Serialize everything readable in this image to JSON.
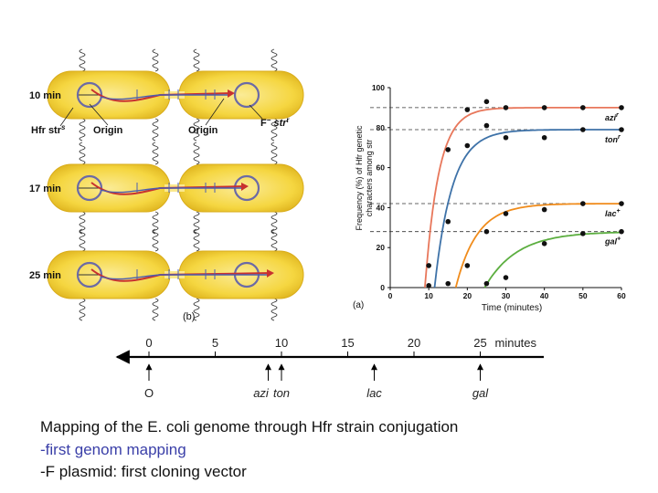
{
  "panel_b": {
    "label": "(b)",
    "time_labels": [
      "10 min",
      "17 min",
      "25 min"
    ],
    "hfr_label": "Hfr str",
    "hfr_sup": "s",
    "origin_left": "Origin",
    "origin_right": "Origin",
    "recipient_label": "F",
    "recipient_minus": "−",
    "recipient_str": " str",
    "recipient_sup": "r"
  },
  "panel_a": {
    "label": "(a)",
    "chart_data": {
      "type": "line",
      "title": "",
      "xlabel": "Time (minutes)",
      "ylabel": "Frequency (%) of Hfr genetic characters among strʳ exconjugants",
      "xlim": [
        0,
        60
      ],
      "ylim": [
        0,
        100
      ],
      "x_ticks": [
        "0",
        "10",
        "20",
        "30",
        "40",
        "50",
        "60"
      ],
      "y_ticks": [
        "0",
        "20",
        "40",
        "60",
        "80",
        "100"
      ],
      "plateau_dashed_lines": [
        90,
        79,
        42,
        28
      ],
      "series": [
        {
          "name": "azi",
          "sup": "r",
          "color": "#e8775b",
          "plateau": 90,
          "points": [
            [
              10,
              11
            ],
            [
              15,
              69
            ],
            [
              20,
              89
            ],
            [
              25,
              93
            ],
            [
              30,
              90
            ],
            [
              40,
              90
            ],
            [
              50,
              90
            ],
            [
              60,
              90
            ]
          ]
        },
        {
          "name": "ton",
          "sup": "r",
          "color": "#3e72a8",
          "plateau": 79,
          "points": [
            [
              10,
              1
            ],
            [
              15,
              33
            ],
            [
              20,
              71
            ],
            [
              25,
              81
            ],
            [
              30,
              75
            ],
            [
              40,
              75
            ],
            [
              50,
              79
            ],
            [
              60,
              79
            ]
          ]
        },
        {
          "name": "lac",
          "sup": "+",
          "color": "#f08c1c",
          "plateau": 42,
          "points": [
            [
              15,
              2
            ],
            [
              20,
              11
            ],
            [
              25,
              28
            ],
            [
              30,
              37
            ],
            [
              40,
              39
            ],
            [
              50,
              42
            ],
            [
              60,
              42
            ]
          ]
        },
        {
          "name": "gal",
          "sup": "+",
          "color": "#5cae40",
          "plateau": 28,
          "points": [
            [
              25,
              2
            ],
            [
              30,
              5
            ],
            [
              40,
              22
            ],
            [
              50,
              27
            ],
            [
              60,
              28
            ]
          ]
        }
      ]
    }
  },
  "genetic_map": {
    "unit_label": "minutes",
    "ticks": [
      "0",
      "5",
      "10",
      "15",
      "20",
      "25"
    ],
    "markers": [
      {
        "label": "O",
        "position": 0,
        "italic": false
      },
      {
        "label": "azi",
        "position": 9,
        "italic": true
      },
      {
        "label": "ton",
        "position": 10,
        "italic": true
      },
      {
        "label": "lac",
        "position": 17,
        "italic": true
      },
      {
        "label": "gal",
        "position": 25,
        "italic": true
      }
    ]
  },
  "caption": {
    "line1": "Mapping of the E. coli genome through Hfr strain conjugation",
    "line2": "-first genom mapping",
    "line3": "-F plasmid: first cloning vector"
  },
  "colors": {
    "cell_yellow": "#f5d23c",
    "cell_inner": "#fbe98e",
    "dna_red": "#c8312f",
    "dna_blue": "#4b5fb0",
    "ring_purple": "#6b6aa6"
  }
}
